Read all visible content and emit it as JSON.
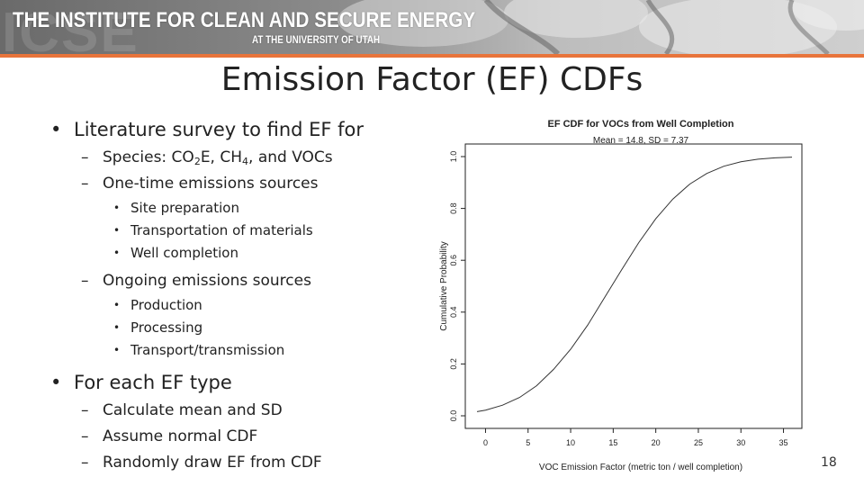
{
  "header": {
    "logo_text": "ICSE",
    "title": "THE INSTITUTE FOR CLEAN AND SECURE ENERGY",
    "subtitle": "AT THE UNIVERSITY OF UTAH",
    "accent_color": "#e8743b"
  },
  "slide": {
    "title": "Emission Factor (EF) CDFs",
    "page_number": "18"
  },
  "bullets": {
    "b1": "Literature survey to find EF for",
    "b1_species_prefix": "Species: CO",
    "b1_species_sub1": "2",
    "b1_species_mid": "E, CH",
    "b1_species_sub2": "4",
    "b1_species_suffix": ", and VOCs",
    "b1_onetime": "One-time emissions sources",
    "b1_onetime_items": [
      "Site preparation",
      "Transportation of materials",
      "Well completion"
    ],
    "b1_ongoing": "Ongoing emissions sources",
    "b1_ongoing_items": [
      "Production",
      "Processing",
      "Transport/transmission"
    ],
    "b2": "For each EF type",
    "b2_items": [
      "Calculate mean and SD",
      "Assume normal CDF",
      "Randomly draw EF from CDF"
    ]
  },
  "chart_data": {
    "type": "line",
    "title": "EF CDF for VOCs from Well Completion",
    "subtitle": "Mean = 14.8, SD = 7.37",
    "xlabel": "VOC Emission Factor (metric ton / well completion)",
    "ylabel": "Cumulative Probability",
    "xlim": [
      -1,
      36
    ],
    "ylim": [
      0,
      1
    ],
    "x_ticks": [
      "0",
      "5",
      "10",
      "15",
      "20",
      "25",
      "30",
      "35"
    ],
    "y_ticks": [
      "0.0",
      "0.2",
      "0.4",
      "0.6",
      "0.8",
      "1.0"
    ],
    "mean": 14.8,
    "sd": 7.37,
    "series": [
      {
        "x": [
          -1,
          0,
          2,
          4,
          6,
          8,
          10,
          12,
          14,
          14.8,
          16,
          18,
          20,
          22,
          24,
          26,
          28,
          30,
          32,
          34,
          36
        ],
        "y": [
          0.016,
          0.022,
          0.041,
          0.071,
          0.116,
          0.179,
          0.257,
          0.35,
          0.457,
          0.5,
          0.564,
          0.668,
          0.76,
          0.836,
          0.894,
          0.935,
          0.963,
          0.98,
          0.99,
          0.995,
          0.998
        ]
      }
    ],
    "grid": false,
    "legend": "none",
    "line_color": "#333333"
  }
}
